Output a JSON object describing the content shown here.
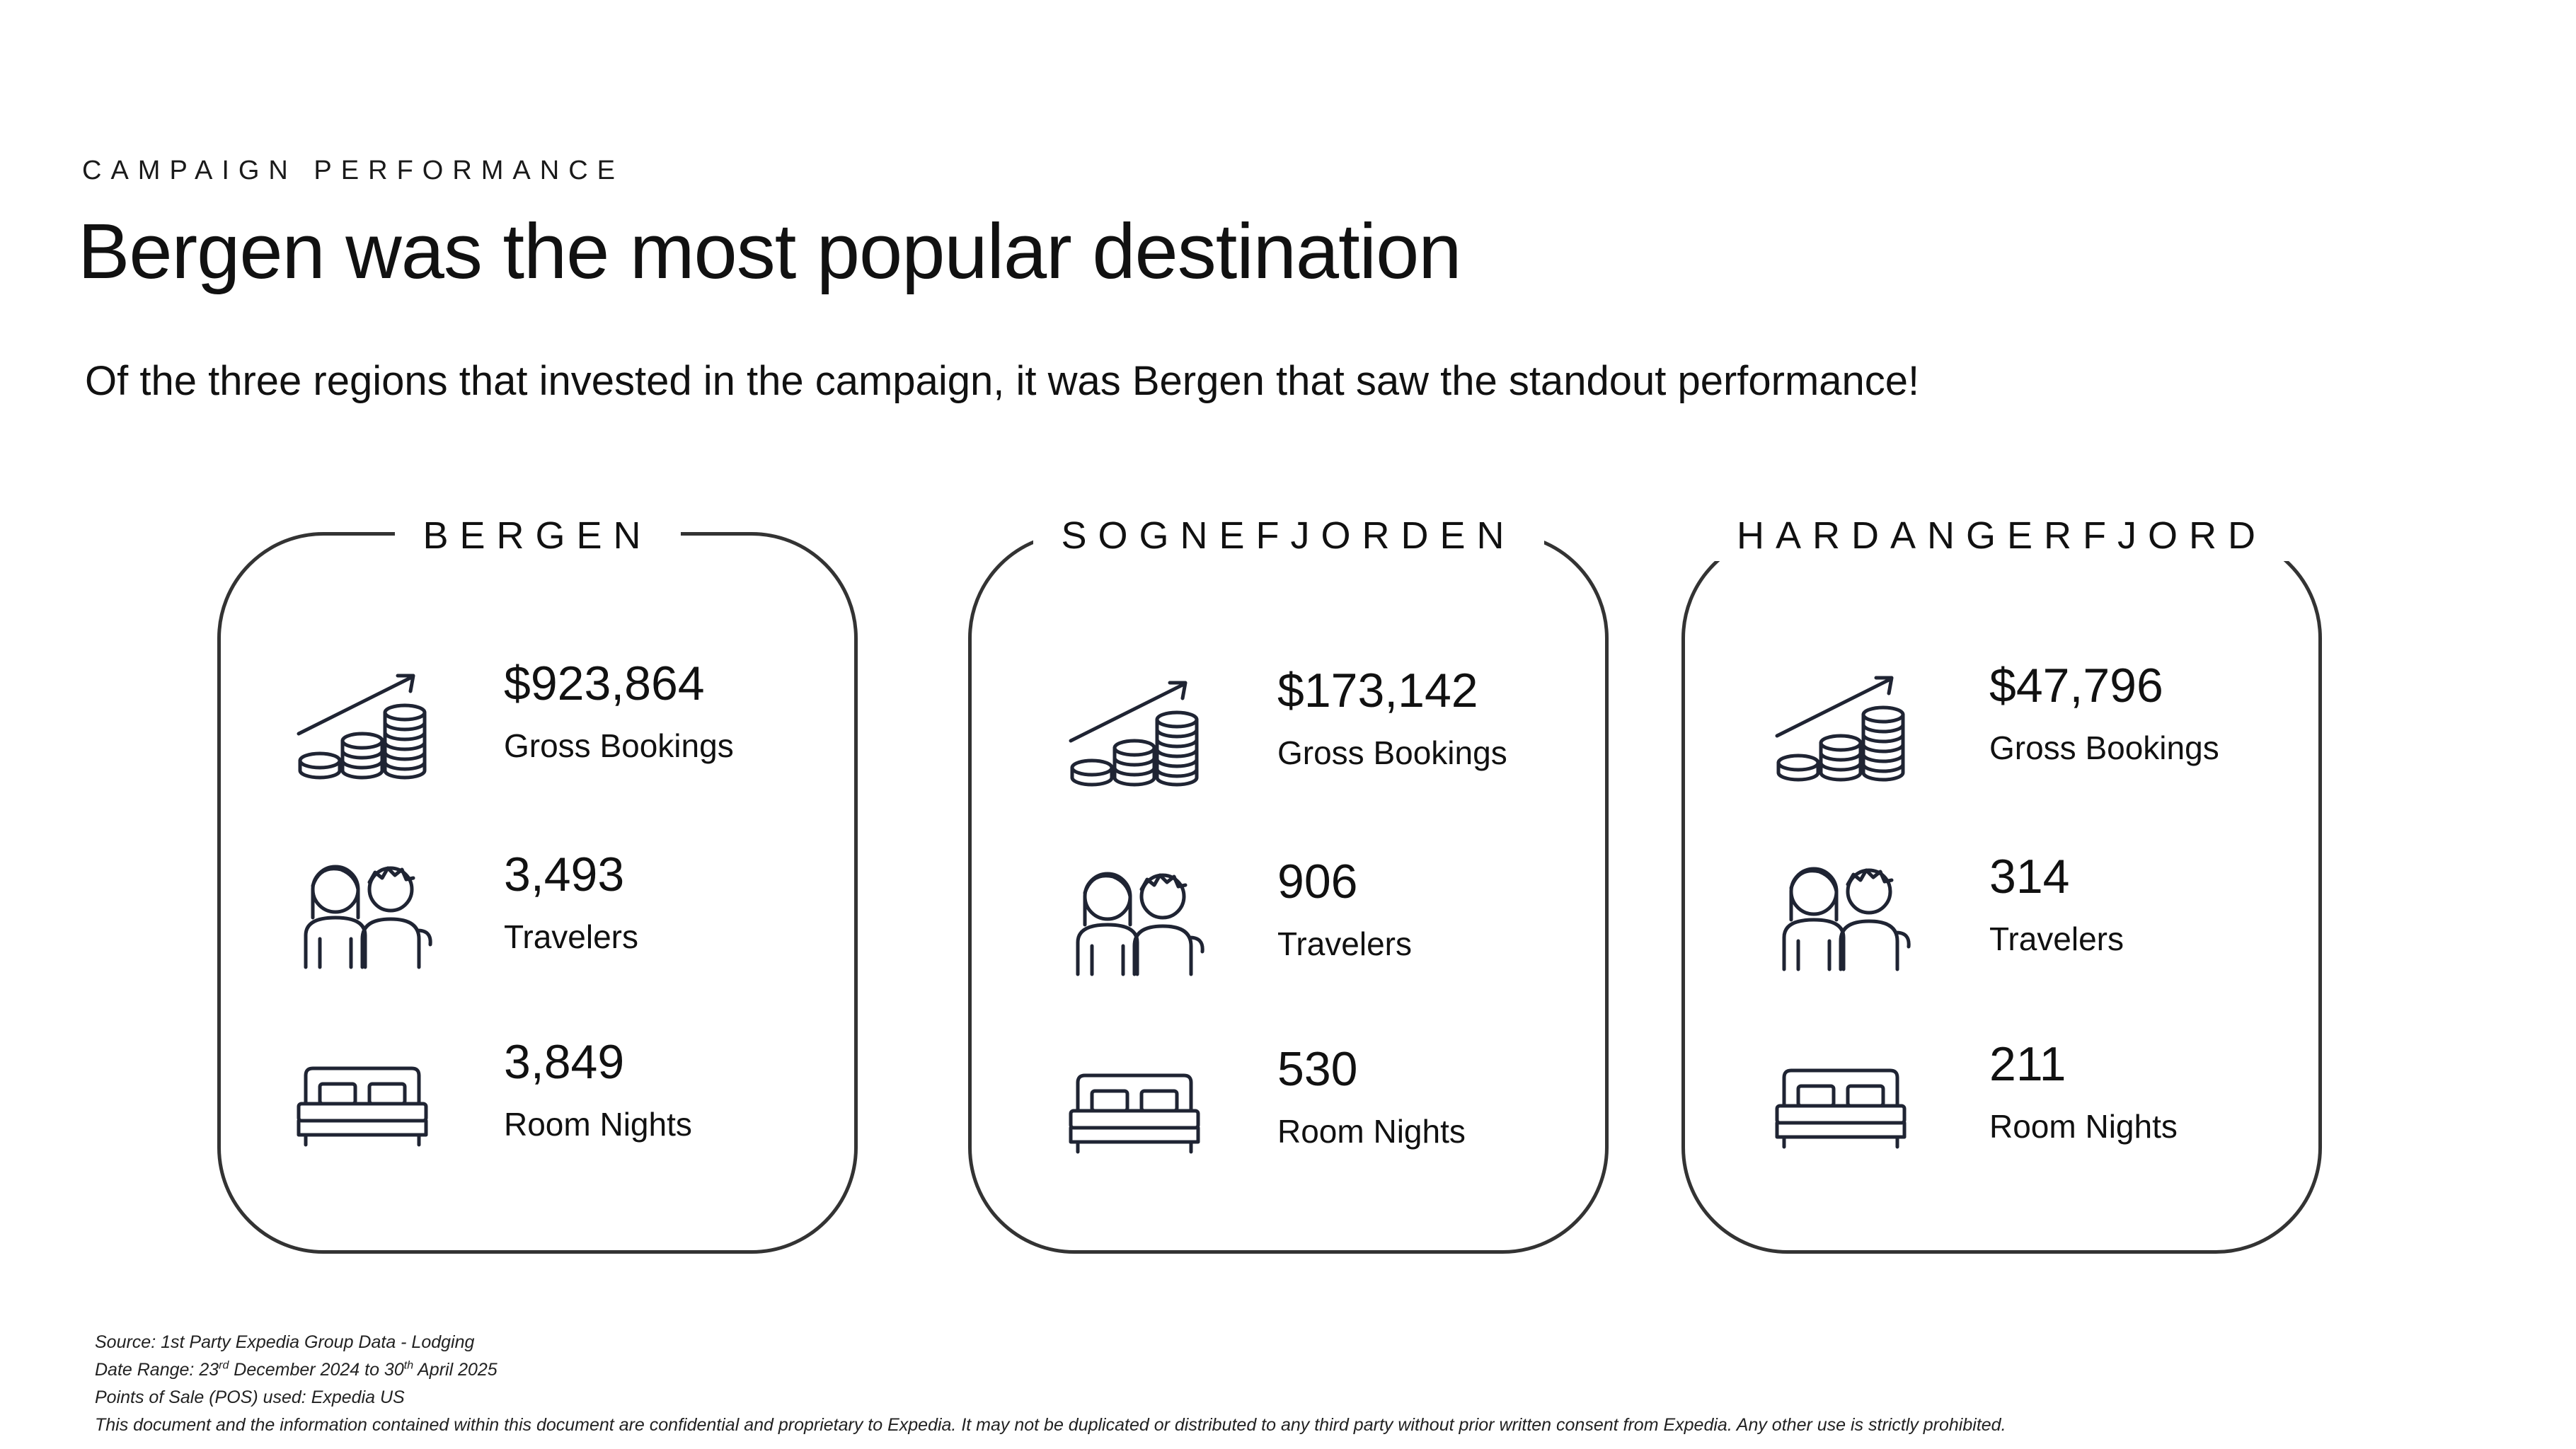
{
  "header": {
    "eyebrow": "CAMPAIGN PERFORMANCE",
    "title": "Bergen was the most popular destination",
    "subtitle": "Of the three regions that invested in the campaign, it was Bergen that saw the standout performance!"
  },
  "regions": [
    {
      "name": "BERGEN",
      "gross_bookings": "$923,864",
      "gross_bookings_label": "Gross Bookings",
      "travelers": "3,493",
      "travelers_label": "Travelers",
      "room_nights": "3,849",
      "room_nights_label": "Room Nights"
    },
    {
      "name": "SOGNEFJORDEN",
      "gross_bookings": "$173,142",
      "gross_bookings_label": "Gross Bookings",
      "travelers": "906",
      "travelers_label": "Travelers",
      "room_nights": "530",
      "room_nights_label": "Room Nights"
    },
    {
      "name": "HARDANGERFJORD",
      "gross_bookings": "$47,796",
      "gross_bookings_label": "Gross Bookings",
      "travelers": "314",
      "travelers_label": "Travelers",
      "room_nights": "211",
      "room_nights_label": "Room Nights"
    }
  ],
  "icons": {
    "bookings": "coins-growth-icon",
    "travelers": "travelers-icon",
    "room_nights": "bed-icon"
  },
  "footer": {
    "source": "Source: 1st Party Expedia Group Data - Lodging",
    "date_prefix": "Date Range: 23",
    "date_sup1": "rd",
    "date_middle": " December 2024 to 30",
    "date_sup2": "th",
    "date_suffix": " April 2025",
    "pos": "Points of Sale (POS) used: Expedia US",
    "disclaimer": "This document and the information contained within this document are confidential and proprietary to Expedia. It may not be duplicated or distributed to any third party without prior written consent from Expedia.  Any other use is strictly prohibited."
  },
  "colors": {
    "text": "#111111",
    "card_border": "#333333",
    "icon_stroke": "#1f2433"
  }
}
